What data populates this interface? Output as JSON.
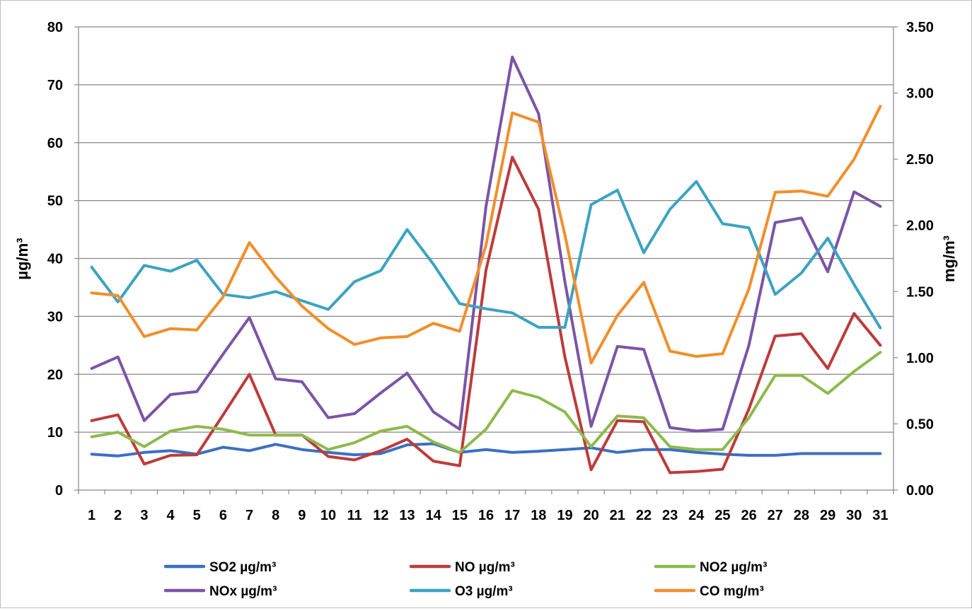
{
  "chart_data": {
    "type": "line",
    "title": "",
    "xlabel": "",
    "ylabel": "µg/m³",
    "y2label": "mg/m³",
    "ylim": [
      0,
      80
    ],
    "y2lim": [
      0,
      3.5
    ],
    "grid": true,
    "legend_position": "bottom",
    "yticks": [
      "0",
      "10",
      "20",
      "30",
      "40",
      "50",
      "60",
      "70",
      "80"
    ],
    "y2ticks": [
      "0.00",
      "0.50",
      "1.00",
      "1.50",
      "2.00",
      "2.50",
      "3.00",
      "3.50"
    ],
    "x": [
      "1",
      "2",
      "3",
      "4",
      "5",
      "6",
      "7",
      "8",
      "9",
      "10",
      "11",
      "12",
      "13",
      "14",
      "15",
      "16",
      "17",
      "18",
      "19",
      "20",
      "21",
      "22",
      "23",
      "24",
      "25",
      "26",
      "27",
      "28",
      "29",
      "30",
      "31"
    ],
    "series": [
      {
        "name": "SO2 µg/m³",
        "axis": "left",
        "color": "#3a6fc4",
        "values": [
          6.2,
          5.9,
          6.5,
          6.8,
          6.2,
          7.4,
          6.8,
          7.9,
          7.0,
          6.5,
          6.1,
          6.3,
          7.8,
          8.0,
          6.5,
          7.0,
          6.5,
          6.7,
          7.0,
          7.3,
          6.5,
          7.0,
          7.0,
          6.5,
          6.2,
          6.0,
          6.0,
          6.3,
          6.3,
          6.3,
          6.3
        ]
      },
      {
        "name": "NO µg/m³",
        "axis": "left",
        "color": "#be3b3b",
        "values": [
          12.0,
          13.0,
          4.5,
          6.0,
          6.1,
          13.0,
          20.0,
          9.5,
          9.5,
          5.8,
          5.2,
          6.8,
          8.8,
          5.0,
          4.2,
          38.0,
          57.5,
          48.5,
          23.0,
          3.5,
          12.0,
          11.8,
          3.0,
          3.2,
          3.6,
          14.0,
          26.6,
          27.0,
          21.0,
          30.5,
          25.0
        ]
      },
      {
        "name": "NO2 µg/m³",
        "axis": "left",
        "color": "#8dba4b",
        "values": [
          9.2,
          10.0,
          7.5,
          10.2,
          11.0,
          10.5,
          9.5,
          9.5,
          9.5,
          7.0,
          8.2,
          10.2,
          11.0,
          8.3,
          6.5,
          10.5,
          17.2,
          16.0,
          13.5,
          7.5,
          12.8,
          12.5,
          7.5,
          7.0,
          7.0,
          12.5,
          19.8,
          19.8,
          16.7,
          20.5,
          23.8
        ]
      },
      {
        "name": "NOx µg/m³",
        "axis": "left",
        "color": "#7b54a6",
        "values": [
          21.0,
          23.0,
          12.0,
          16.5,
          17.0,
          23.5,
          29.8,
          19.2,
          18.7,
          12.5,
          13.2,
          16.8,
          20.2,
          13.5,
          10.5,
          49.0,
          74.8,
          65.0,
          36.0,
          11.0,
          24.8,
          24.3,
          10.8,
          10.2,
          10.5,
          25.0,
          46.2,
          47.0,
          37.7,
          51.5,
          49.0
        ]
      },
      {
        "name": "O3 µg/m³",
        "axis": "left",
        "color": "#3ba3c2",
        "values": [
          38.5,
          32.5,
          38.8,
          37.8,
          39.7,
          33.8,
          33.2,
          34.3,
          32.7,
          31.2,
          36.0,
          37.9,
          45.0,
          39.0,
          32.2,
          31.3,
          30.6,
          28.1,
          28.1,
          49.3,
          51.8,
          41.0,
          48.5,
          53.3,
          46.0,
          45.3,
          33.8,
          37.5,
          43.5,
          35.5,
          28.0
        ]
      },
      {
        "name": "CO mg/m³",
        "axis": "right",
        "color": "#f28e2b",
        "values": [
          1.49,
          1.47,
          1.16,
          1.22,
          1.21,
          1.46,
          1.87,
          1.61,
          1.39,
          1.22,
          1.1,
          1.15,
          1.16,
          1.26,
          1.2,
          1.85,
          2.85,
          2.78,
          1.93,
          0.96,
          1.32,
          1.57,
          1.05,
          1.01,
          1.03,
          1.52,
          2.25,
          2.26,
          2.22,
          2.5,
          2.9
        ]
      }
    ]
  }
}
